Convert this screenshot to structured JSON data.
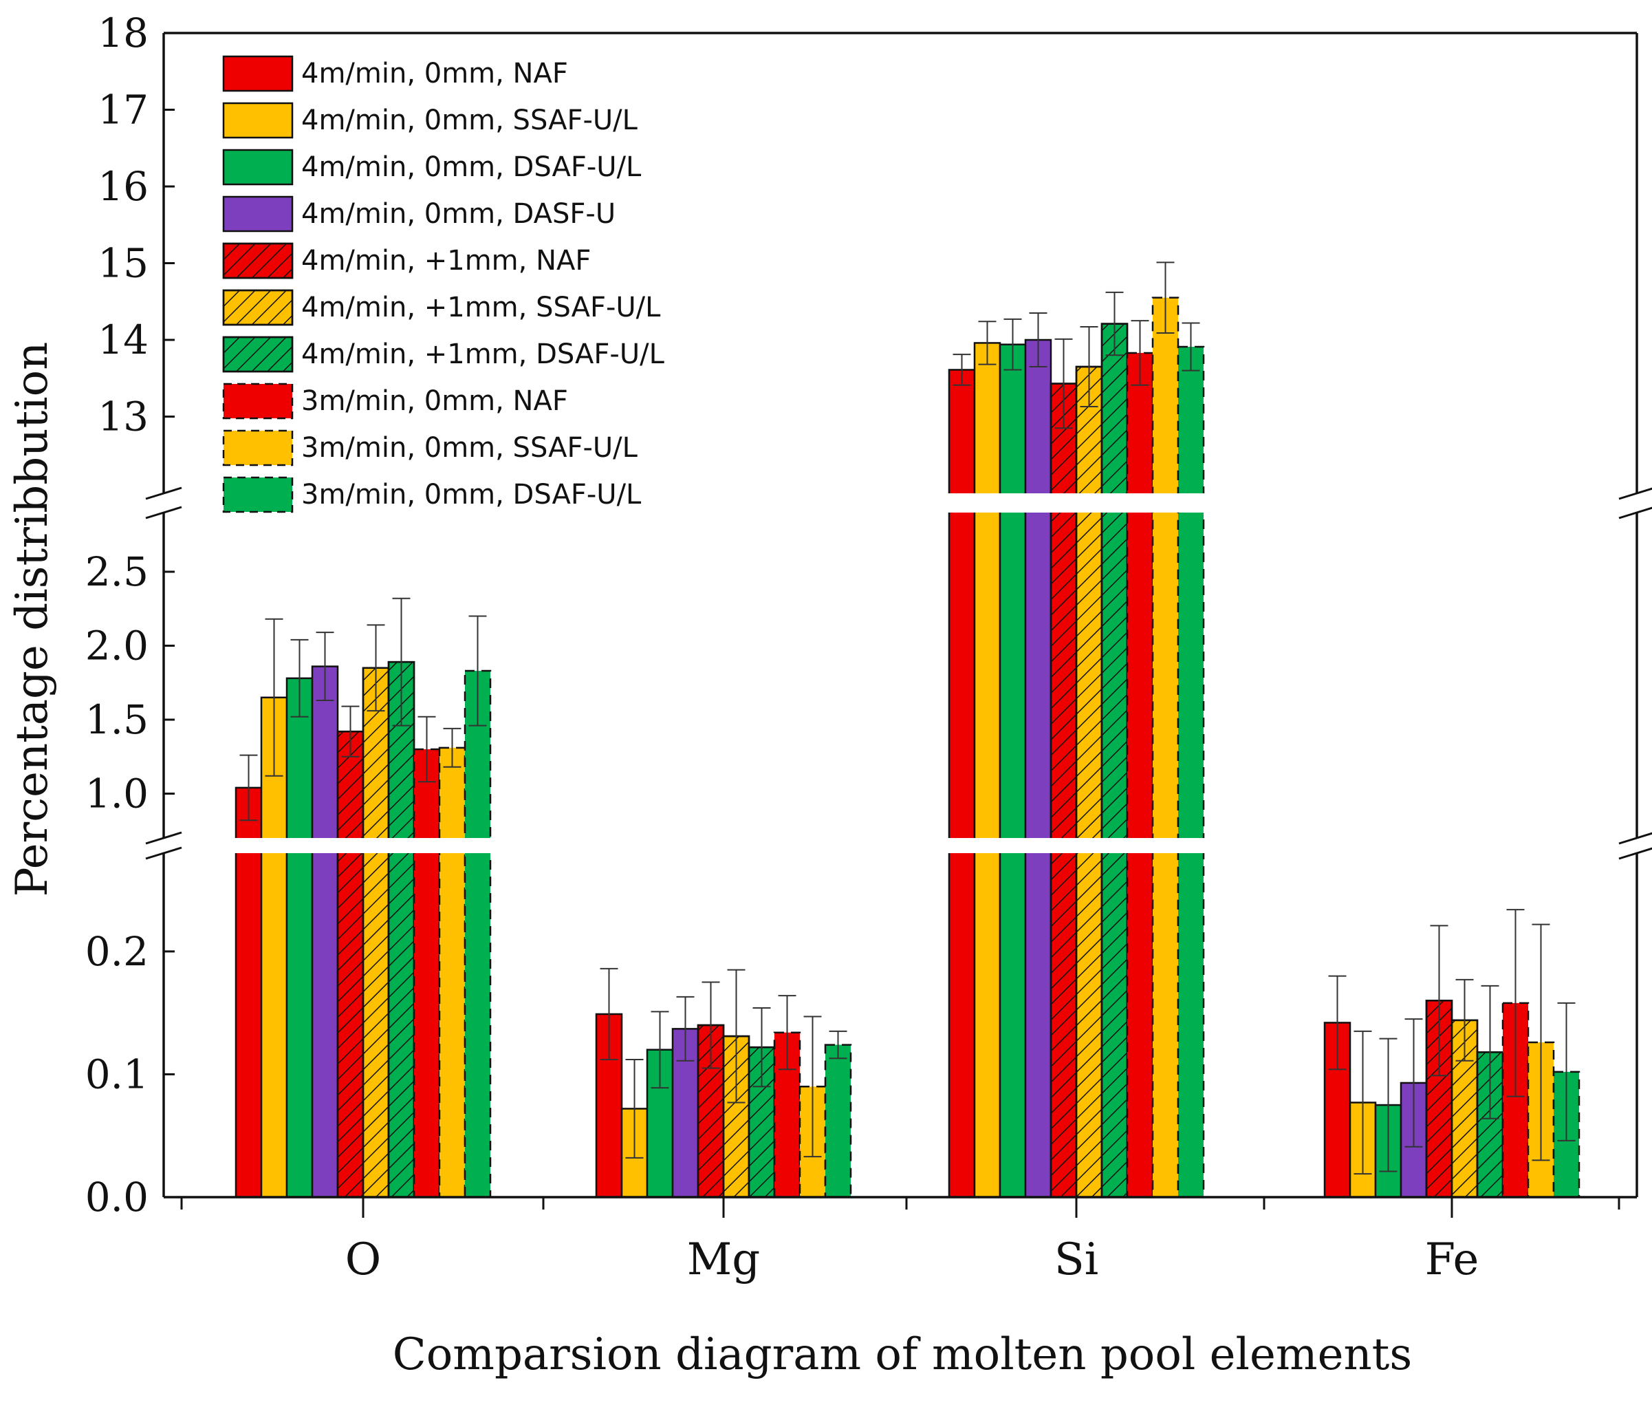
{
  "chart_data": {
    "type": "bar",
    "xlabel": "Comparsion diagram of molten pool elements",
    "ylabel": "Percentage distribbution",
    "categories": [
      "O",
      "Mg",
      "Si",
      "Fe"
    ],
    "y_axis_segments": [
      {
        "range": [
          0,
          0.28
        ],
        "ticks": [
          "0.0",
          "0.1",
          "0.2"
        ]
      },
      {
        "range": [
          0.7,
          2.9
        ],
        "ticks": [
          "1.0",
          "1.5",
          "2.0",
          "2.5"
        ]
      },
      {
        "range": [
          12.0,
          18.0
        ],
        "ticks": [
          "13",
          "14",
          "15",
          "16",
          "17",
          "18"
        ]
      }
    ],
    "legend_position": "top-left",
    "series": [
      {
        "name": "4m/min, 0mm, NAF",
        "color": "#ee0000",
        "pattern": "solid",
        "values": [
          1.04,
          0.149,
          13.61,
          0.142
        ],
        "errors": [
          0.22,
          0.037,
          0.2,
          0.038
        ]
      },
      {
        "name": "4m/min, 0mm, SSAF-U/L",
        "color": "#ffc000",
        "pattern": "solid",
        "values": [
          1.65,
          0.072,
          13.96,
          0.077
        ],
        "errors": [
          0.53,
          0.04,
          0.28,
          0.058
        ]
      },
      {
        "name": "4m/min, 0mm, DSAF-U/L",
        "color": "#00b050",
        "pattern": "solid",
        "values": [
          1.78,
          0.12,
          13.94,
          0.075
        ],
        "errors": [
          0.26,
          0.031,
          0.33,
          0.054
        ]
      },
      {
        "name": "4m/min, 0mm, DASF-U",
        "color": "#7e3fbf",
        "pattern": "solid",
        "values": [
          1.86,
          0.137,
          14.0,
          0.093
        ],
        "errors": [
          0.23,
          0.026,
          0.35,
          0.052
        ]
      },
      {
        "name": "4m/min, +1mm, NAF",
        "color": "#ee0000",
        "pattern": "hatch",
        "values": [
          1.42,
          0.14,
          13.43,
          0.16
        ],
        "errors": [
          0.17,
          0.035,
          0.58,
          0.061
        ]
      },
      {
        "name": "4m/min, +1mm, SSAF-U/L",
        "color": "#ffc000",
        "pattern": "hatch",
        "values": [
          1.85,
          0.131,
          13.65,
          0.144
        ],
        "errors": [
          0.29,
          0.054,
          0.52,
          0.033
        ]
      },
      {
        "name": "4m/min, +1mm, DSAF-U/L",
        "color": "#00b050",
        "pattern": "hatch",
        "values": [
          1.89,
          0.122,
          14.21,
          0.118
        ],
        "errors": [
          0.43,
          0.032,
          0.41,
          0.054
        ]
      },
      {
        "name": "3m/min, 0mm, NAF",
        "color": "#ee0000",
        "pattern": "dashed",
        "values": [
          1.3,
          0.134,
          13.83,
          0.158
        ],
        "errors": [
          0.22,
          0.03,
          0.42,
          0.076
        ]
      },
      {
        "name": "3m/min, 0mm, SSAF-U/L",
        "color": "#ffc000",
        "pattern": "dashed",
        "values": [
          1.31,
          0.09,
          14.55,
          0.126
        ],
        "errors": [
          0.13,
          0.057,
          0.46,
          0.096
        ]
      },
      {
        "name": "3m/min, 0mm, DSAF-U/L",
        "color": "#00b050",
        "pattern": "dashed",
        "values": [
          1.83,
          0.124,
          13.91,
          0.102
        ],
        "errors": [
          0.37,
          0.011,
          0.31,
          0.056
        ]
      }
    ]
  }
}
